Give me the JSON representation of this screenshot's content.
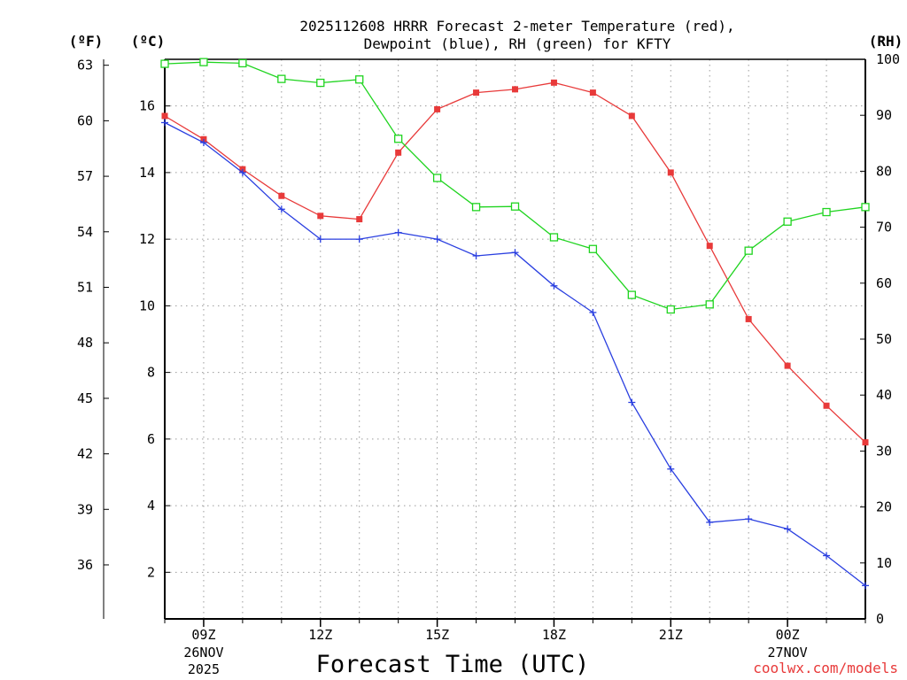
{
  "chart_data": {
    "type": "line",
    "title_line1": "2025112608 HRRR Forecast 2-meter Temperature (red),",
    "title_line2": "Dewpoint (blue), RH (green) for KFTY",
    "xlabel": "Forecast Time (UTC)",
    "credit": "coolwx.com/models",
    "units": {
      "fahrenheit": "(ºF)",
      "celsius": "(ºC)",
      "rh": "(RH)"
    },
    "x_hours": [
      8,
      9,
      10,
      11,
      12,
      13,
      14,
      15,
      16,
      17,
      18,
      19,
      20,
      21,
      22,
      23,
      24,
      25,
      26
    ],
    "xlim": [
      8,
      26
    ],
    "x_ticks": [
      {
        "hour": 9,
        "label": "09Z",
        "date": "26NOV",
        "year": "2025"
      },
      {
        "hour": 12,
        "label": "12Z",
        "date": "",
        "year": ""
      },
      {
        "hour": 15,
        "label": "15Z",
        "date": "",
        "year": ""
      },
      {
        "hour": 18,
        "label": "18Z",
        "date": "",
        "year": ""
      },
      {
        "hour": 21,
        "label": "21Z",
        "date": "",
        "year": ""
      },
      {
        "hour": 24,
        "label": "00Z",
        "date": "27NOV",
        "year": ""
      }
    ],
    "celsius_axis": {
      "ylim": [
        0.6,
        17.4
      ],
      "ticks": [
        "2",
        "4",
        "6",
        "8",
        "10",
        "12",
        "14",
        "16"
      ]
    },
    "fahrenheit_axis": {
      "ticks": [
        "36",
        "39",
        "42",
        "45",
        "48",
        "51",
        "54",
        "57",
        "60",
        "63"
      ]
    },
    "rh_axis": {
      "ylim": [
        0,
        100
      ],
      "ticks": [
        "0",
        "10",
        "20",
        "30",
        "40",
        "50",
        "60",
        "70",
        "80",
        "90",
        "100"
      ]
    },
    "grid": true,
    "series": [
      {
        "name": "Temperature",
        "color": "#e83a3a",
        "marker": "filled-square",
        "axis": "celsius",
        "values": [
          15.7,
          15.0,
          14.1,
          13.3,
          12.7,
          12.6,
          14.6,
          15.9,
          16.4,
          16.5,
          16.7,
          16.4,
          15.7,
          14.0,
          11.8,
          9.6,
          8.2,
          7.0,
          5.9
        ]
      },
      {
        "name": "Dewpoint",
        "color": "#2a3fe0",
        "marker": "plus",
        "axis": "celsius",
        "values": [
          15.5,
          14.9,
          14.0,
          12.9,
          12.0,
          12.0,
          12.2,
          12.0,
          11.5,
          11.6,
          10.6,
          9.8,
          7.1,
          5.1,
          3.5,
          3.6,
          3.3,
          2.5,
          1.6
        ]
      },
      {
        "name": "RH",
        "color": "#1fd41f",
        "marker": "open-square",
        "axis": "rh",
        "values": [
          99.2,
          99.5,
          99.3,
          96.5,
          95.8,
          96.4,
          85.8,
          78.8,
          73.6,
          73.7,
          68.2,
          66.1,
          57.9,
          55.3,
          56.2,
          65.8,
          71.0,
          72.7,
          73.6
        ]
      }
    ]
  }
}
